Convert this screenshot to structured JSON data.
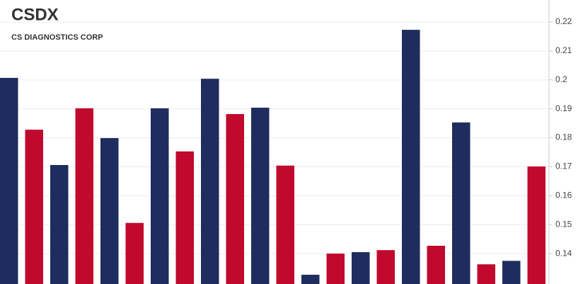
{
  "chart_data": {
    "type": "bar",
    "title": "CSDX",
    "subtitle": "CS DIAGNOSTICS CORP",
    "categories": [
      null,
      null,
      null,
      null,
      null,
      null,
      null,
      null,
      null,
      null,
      null,
      null,
      null,
      null,
      null,
      null,
      null,
      null,
      null,
      null,
      null,
      null
    ],
    "values": [
      0.2007,
      0.1828,
      0.1706,
      0.1902,
      0.1799,
      0.1506,
      0.1902,
      0.1753,
      0.2004,
      0.1882,
      0.1904,
      0.1704,
      0.1327,
      0.14,
      0.1405,
      0.1412,
      0.2173,
      0.1427,
      0.1853,
      0.1363,
      0.1375,
      0.1701
    ],
    "colors": [
      "#1f2d5e",
      "#c0092c",
      "#1f2d5e",
      "#c0092c",
      "#1f2d5e",
      "#c0092c",
      "#1f2d5e",
      "#c0092c",
      "#1f2d5e",
      "#c0092c",
      "#1f2d5e",
      "#c0092c",
      "#1f2d5e",
      "#c0092c",
      "#1f2d5e",
      "#c0092c",
      "#1f2d5e",
      "#c0092c",
      "#1f2d5e",
      "#c0092c",
      "#1f2d5e",
      "#c0092c"
    ],
    "ylim": [
      0.1295,
      0.2276
    ],
    "yticks": [
      0.14,
      0.15,
      0.16,
      0.17,
      0.18,
      0.19,
      0.2,
      0.21,
      0.22
    ],
    "grid": true,
    "axis_side": "right"
  }
}
